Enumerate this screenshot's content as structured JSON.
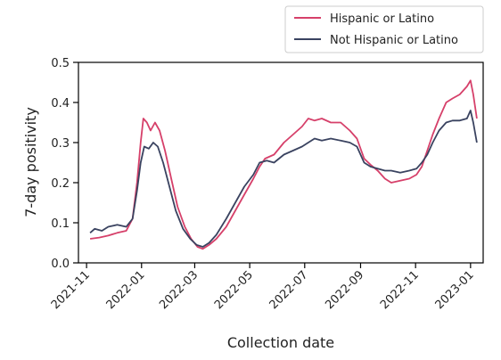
{
  "chart_data": {
    "type": "line",
    "xlabel": "Collection date",
    "ylabel": "7-day positivity",
    "x_range": [
      "2021-10-23",
      "2023-01-15"
    ],
    "ylim": [
      0,
      0.5
    ],
    "yticks": [
      0.0,
      0.1,
      0.2,
      0.3,
      0.4,
      0.5
    ],
    "ytick_labels": [
      "0.0",
      "0.1",
      "0.2",
      "0.3",
      "0.4",
      "0.5"
    ],
    "xticks": [
      "2021-11-01",
      "2022-01-01",
      "2022-03-01",
      "2022-05-01",
      "2022-07-01",
      "2022-09-01",
      "2022-11-01",
      "2023-01-01"
    ],
    "xtick_labels": [
      "2021-11",
      "2022-01",
      "2022-03",
      "2022-05",
      "2022-07",
      "2022-09",
      "2022-11",
      "2023-01"
    ],
    "grid": false,
    "legend_placement": "above top-right",
    "series": [
      {
        "name": "Hispanic or Latino",
        "color": "#d6406a",
        "points": [
          [
            "2021-11-05",
            0.06
          ],
          [
            "2021-11-15",
            0.063
          ],
          [
            "2021-11-25",
            0.068
          ],
          [
            "2021-12-05",
            0.075
          ],
          [
            "2021-12-15",
            0.08
          ],
          [
            "2021-12-22",
            0.11
          ],
          [
            "2021-12-27",
            0.2
          ],
          [
            "2021-12-31",
            0.3
          ],
          [
            "2022-01-03",
            0.36
          ],
          [
            "2022-01-07",
            0.35
          ],
          [
            "2022-01-11",
            0.33
          ],
          [
            "2022-01-16",
            0.35
          ],
          [
            "2022-01-21",
            0.33
          ],
          [
            "2022-01-27",
            0.28
          ],
          [
            "2022-02-03",
            0.21
          ],
          [
            "2022-02-10",
            0.14
          ],
          [
            "2022-02-18",
            0.09
          ],
          [
            "2022-02-25",
            0.06
          ],
          [
            "2022-03-04",
            0.04
          ],
          [
            "2022-03-10",
            0.035
          ],
          [
            "2022-03-17",
            0.045
          ],
          [
            "2022-03-25",
            0.06
          ],
          [
            "2022-04-05",
            0.09
          ],
          [
            "2022-04-15",
            0.13
          ],
          [
            "2022-04-25",
            0.17
          ],
          [
            "2022-05-05",
            0.21
          ],
          [
            "2022-05-12",
            0.24
          ],
          [
            "2022-05-18",
            0.26
          ],
          [
            "2022-05-28",
            0.27
          ],
          [
            "2022-06-08",
            0.3
          ],
          [
            "2022-06-18",
            0.32
          ],
          [
            "2022-06-28",
            0.34
          ],
          [
            "2022-07-05",
            0.36
          ],
          [
            "2022-07-12",
            0.355
          ],
          [
            "2022-07-20",
            0.36
          ],
          [
            "2022-07-30",
            0.35
          ],
          [
            "2022-08-10",
            0.35
          ],
          [
            "2022-08-20",
            0.33
          ],
          [
            "2022-08-28",
            0.31
          ],
          [
            "2022-09-05",
            0.26
          ],
          [
            "2022-09-12",
            0.245
          ],
          [
            "2022-09-20",
            0.23
          ],
          [
            "2022-09-28",
            0.21
          ],
          [
            "2022-10-05",
            0.2
          ],
          [
            "2022-10-15",
            0.205
          ],
          [
            "2022-10-25",
            0.21
          ],
          [
            "2022-11-02",
            0.22
          ],
          [
            "2022-11-08",
            0.24
          ],
          [
            "2022-11-14",
            0.28
          ],
          [
            "2022-11-20",
            0.32
          ],
          [
            "2022-11-27",
            0.36
          ],
          [
            "2022-12-05",
            0.4
          ],
          [
            "2022-12-12",
            0.41
          ],
          [
            "2022-12-20",
            0.42
          ],
          [
            "2022-12-28",
            0.44
          ],
          [
            "2023-01-01",
            0.455
          ],
          [
            "2023-01-04",
            0.42
          ],
          [
            "2023-01-08",
            0.36
          ]
        ]
      },
      {
        "name": "Not Hispanic or Latino",
        "color": "#3a4360",
        "points": [
          [
            "2021-11-05",
            0.075
          ],
          [
            "2021-11-10",
            0.085
          ],
          [
            "2021-11-18",
            0.08
          ],
          [
            "2021-11-25",
            0.09
          ],
          [
            "2021-12-05",
            0.095
          ],
          [
            "2021-12-15",
            0.09
          ],
          [
            "2021-12-22",
            0.11
          ],
          [
            "2021-12-27",
            0.18
          ],
          [
            "2021-12-31",
            0.25
          ],
          [
            "2022-01-04",
            0.29
          ],
          [
            "2022-01-09",
            0.285
          ],
          [
            "2022-01-14",
            0.3
          ],
          [
            "2022-01-19",
            0.29
          ],
          [
            "2022-01-25",
            0.25
          ],
          [
            "2022-02-01",
            0.19
          ],
          [
            "2022-02-08",
            0.13
          ],
          [
            "2022-02-16",
            0.085
          ],
          [
            "2022-02-24",
            0.06
          ],
          [
            "2022-03-03",
            0.045
          ],
          [
            "2022-03-10",
            0.04
          ],
          [
            "2022-03-17",
            0.05
          ],
          [
            "2022-03-25",
            0.07
          ],
          [
            "2022-04-05",
            0.11
          ],
          [
            "2022-04-15",
            0.15
          ],
          [
            "2022-04-25",
            0.19
          ],
          [
            "2022-05-05",
            0.22
          ],
          [
            "2022-05-12",
            0.25
          ],
          [
            "2022-05-20",
            0.255
          ],
          [
            "2022-05-28",
            0.25
          ],
          [
            "2022-06-08",
            0.27
          ],
          [
            "2022-06-18",
            0.28
          ],
          [
            "2022-06-28",
            0.29
          ],
          [
            "2022-07-05",
            0.3
          ],
          [
            "2022-07-12",
            0.31
          ],
          [
            "2022-07-20",
            0.305
          ],
          [
            "2022-07-30",
            0.31
          ],
          [
            "2022-08-10",
            0.305
          ],
          [
            "2022-08-20",
            0.3
          ],
          [
            "2022-08-28",
            0.29
          ],
          [
            "2022-09-05",
            0.25
          ],
          [
            "2022-09-12",
            0.24
          ],
          [
            "2022-09-20",
            0.235
          ],
          [
            "2022-09-28",
            0.23
          ],
          [
            "2022-10-05",
            0.23
          ],
          [
            "2022-10-15",
            0.225
          ],
          [
            "2022-10-25",
            0.23
          ],
          [
            "2022-11-02",
            0.235
          ],
          [
            "2022-11-08",
            0.25
          ],
          [
            "2022-11-14",
            0.27
          ],
          [
            "2022-11-20",
            0.3
          ],
          [
            "2022-11-27",
            0.33
          ],
          [
            "2022-12-05",
            0.35
          ],
          [
            "2022-12-12",
            0.355
          ],
          [
            "2022-12-20",
            0.355
          ],
          [
            "2022-12-28",
            0.36
          ],
          [
            "2023-01-01",
            0.38
          ],
          [
            "2023-01-04",
            0.35
          ],
          [
            "2023-01-08",
            0.3
          ]
        ]
      }
    ]
  }
}
